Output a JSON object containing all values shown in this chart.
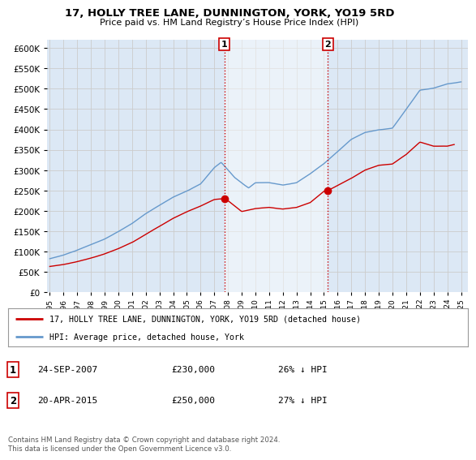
{
  "title": "17, HOLLY TREE LANE, DUNNINGTON, YORK, YO19 5RD",
  "subtitle": "Price paid vs. HM Land Registry’s House Price Index (HPI)",
  "legend_line1": "17, HOLLY TREE LANE, DUNNINGTON, YORK, YO19 5RD (detached house)",
  "legend_line2": "HPI: Average price, detached house, York",
  "annotation1_label": "1",
  "annotation1_date": "24-SEP-2007",
  "annotation1_price": "£230,000",
  "annotation1_hpi": "26% ↓ HPI",
  "annotation2_label": "2",
  "annotation2_date": "20-APR-2015",
  "annotation2_price": "£250,000",
  "annotation2_hpi": "27% ↓ HPI",
  "footer": "Contains HM Land Registry data © Crown copyright and database right 2024.\nThis data is licensed under the Open Government Licence v3.0.",
  "red_color": "#cc0000",
  "blue_color": "#6699cc",
  "blue_fill_color": "#dce8f5",
  "vline_color": "#cc0000",
  "grid_color": "#cccccc",
  "bg_color": "#ffffff",
  "plot_bg_color": "#dce8f5",
  "sale1_year": 2007.73,
  "sale1_value": 230000,
  "sale2_year": 2015.29,
  "sale2_value": 250000,
  "ylim": [
    0,
    620000
  ],
  "xlim": [
    1994.8,
    2025.5
  ],
  "ytick_step": 50000
}
